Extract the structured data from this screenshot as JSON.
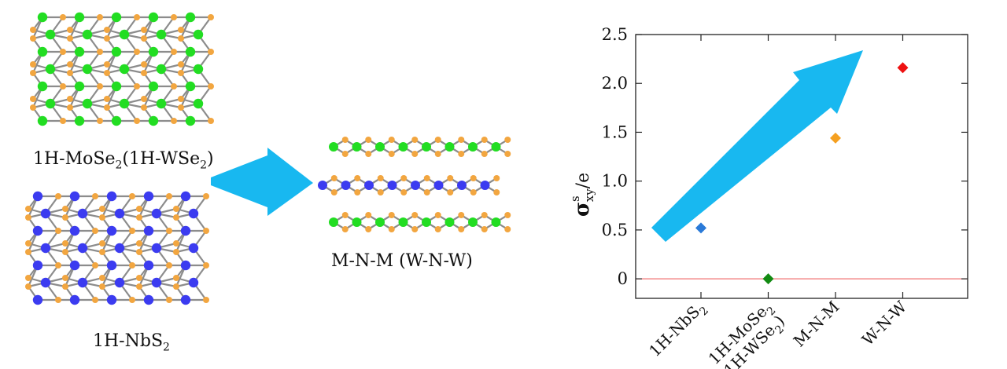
{
  "labels": {
    "mose2": "1H-MoSe",
    "mose2_sub": "2",
    "mose2_paren": "(1H-WSe",
    "mose2_paren_sub": "2",
    "mose2_close": ")",
    "nbs2": "1H-NbS",
    "nbs2_sub": "2",
    "heterostructure": "M-N-M (W-N-W)"
  },
  "colors": {
    "chalcogen": "#f2a640",
    "mo_w": "#22dd22",
    "nb": "#3b3bf0",
    "bond": "#8c8c8c",
    "arrow": "#18b8f0",
    "zero_line": "#f07070"
  },
  "chart_data": {
    "type": "scatter",
    "ylabel": "σ^s_xy/e",
    "ylabel_main": "σ",
    "ylabel_sup": "s",
    "ylabel_sub": "xy",
    "ylabel_tail": "/e",
    "ylim": [
      -0.2,
      2.5
    ],
    "yticks": [
      "0",
      "0.5",
      "1.0",
      "1.5",
      "2.0",
      "2.5"
    ],
    "ytick_values": [
      0,
      0.5,
      1.0,
      1.5,
      2.0,
      2.5
    ],
    "categories": [
      "1H-NbS2",
      "1H-MoSe2 (1H-WSe2)",
      "M-N-M",
      "W-N-W"
    ],
    "category_labels": [
      {
        "text": "1H-NbS",
        "sub": "2",
        "line2": ""
      },
      {
        "text": "1H-MoSe",
        "sub": "2",
        "line2": "(1H-WSe",
        "line2_sub": "2",
        "line2_tail": ")"
      },
      {
        "text": "M-N-M",
        "sub": "",
        "line2": ""
      },
      {
        "text": "W-N-W",
        "sub": "",
        "line2": ""
      }
    ],
    "values": [
      0.52,
      0.0,
      1.44,
      2.16
    ],
    "point_colors": [
      "#2a7ad8",
      "#128a12",
      "#f5a020",
      "#ee1111"
    ],
    "reference_line": 0,
    "grid": false
  }
}
